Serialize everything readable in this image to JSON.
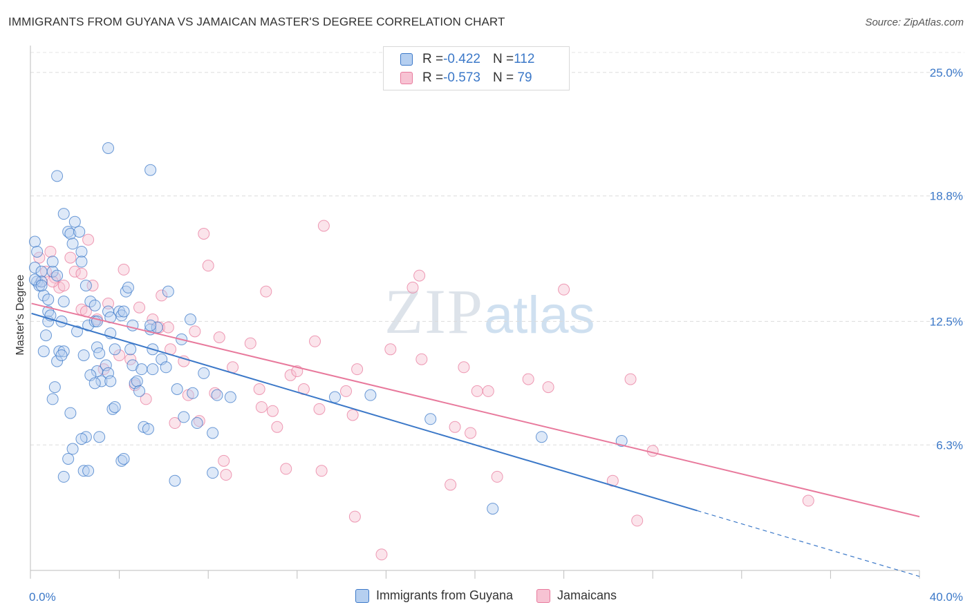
{
  "title": "IMMIGRANTS FROM GUYANA VS JAMAICAN MASTER'S DEGREE CORRELATION CHART",
  "source": "Source: ZipAtlas.com",
  "watermark": {
    "zip": "ZIP",
    "atlas": "atlas"
  },
  "legend_top": {
    "rows": [
      {
        "r_label": "R = ",
        "r_value": "-0.422",
        "n_label": "N = ",
        "n_value": "112"
      },
      {
        "r_label": "R = ",
        "r_value": "-0.573",
        "n_label": "N = ",
        "n_value": " 79"
      }
    ]
  },
  "legend_bottom": [
    "Immigrants from Guyana",
    "Jamaicans"
  ],
  "chart_data": {
    "type": "scatter",
    "title": "IMMIGRANTS FROM GUYANA VS JAMAICAN MASTER'S DEGREE CORRELATION CHART",
    "xlabel": "",
    "ylabel": "Master's Degree",
    "xlim": [
      0,
      40
    ],
    "ylim": [
      0,
      26
    ],
    "x_tick_labels": [
      "0.0%",
      "40.0%"
    ],
    "y_ticks": [
      6.3,
      12.5,
      18.8,
      25.0
    ],
    "y_tick_labels": [
      "6.3%",
      "12.5%",
      "18.8%",
      "25.0%"
    ],
    "grid": true,
    "legend": "top-center",
    "series": [
      {
        "name": "Immigrants from Guyana",
        "color": "#3b78c8",
        "fill": "#b5cff0",
        "r": -0.422,
        "n": 112,
        "trend": {
          "x0": 0.05,
          "y0": 12.9,
          "x1": 30.0,
          "y1": 3.0,
          "dash_to": [
            40.0,
            -0.3
          ]
        },
        "points": [
          [
            0.2,
            16.5
          ],
          [
            0.3,
            16.0
          ],
          [
            0.2,
            15.2
          ],
          [
            0.3,
            14.5
          ],
          [
            0.4,
            14.3
          ],
          [
            0.5,
            15.0
          ],
          [
            0.5,
            14.5
          ],
          [
            0.6,
            13.8
          ],
          [
            0.8,
            13.0
          ],
          [
            0.8,
            12.5
          ],
          [
            0.7,
            11.8
          ],
          [
            0.6,
            11.0
          ],
          [
            0.9,
            12.8
          ],
          [
            1.0,
            15.0
          ],
          [
            1.0,
            15.5
          ],
          [
            1.2,
            14.8
          ],
          [
            1.3,
            11.0
          ],
          [
            1.2,
            10.5
          ],
          [
            1.5,
            11.0
          ],
          [
            1.4,
            10.8
          ],
          [
            1.5,
            13.5
          ],
          [
            1.5,
            17.9
          ],
          [
            1.7,
            17.0
          ],
          [
            1.8,
            16.9
          ],
          [
            1.9,
            16.4
          ],
          [
            2.0,
            17.5
          ],
          [
            2.2,
            17.0
          ],
          [
            2.3,
            16.0
          ],
          [
            2.3,
            15.5
          ],
          [
            2.5,
            14.3
          ],
          [
            2.7,
            13.5
          ],
          [
            2.6,
            12.3
          ],
          [
            2.9,
            13.3
          ],
          [
            2.9,
            12.5
          ],
          [
            3.0,
            11.2
          ],
          [
            3.1,
            10.9
          ],
          [
            3.0,
            10.0
          ],
          [
            3.2,
            9.5
          ],
          [
            3.4,
            10.3
          ],
          [
            3.5,
            13.0
          ],
          [
            3.6,
            12.7
          ],
          [
            3.6,
            11.9
          ],
          [
            3.8,
            11.1
          ],
          [
            3.5,
            9.9
          ],
          [
            3.6,
            9.5
          ],
          [
            3.7,
            8.1
          ],
          [
            3.8,
            8.2
          ],
          [
            4.0,
            13.0
          ],
          [
            4.1,
            12.8
          ],
          [
            4.3,
            14.0
          ],
          [
            4.4,
            14.2
          ],
          [
            4.5,
            11.1
          ],
          [
            4.6,
            10.3
          ],
          [
            4.7,
            9.4
          ],
          [
            4.8,
            9.5
          ],
          [
            4.9,
            9.0
          ],
          [
            5.0,
            10.1
          ],
          [
            5.1,
            7.2
          ],
          [
            5.3,
            7.1
          ],
          [
            5.4,
            12.1
          ],
          [
            5.5,
            11.1
          ],
          [
            5.5,
            10.1
          ],
          [
            5.7,
            12.2
          ],
          [
            5.9,
            10.6
          ],
          [
            6.2,
            14.0
          ],
          [
            6.6,
            9.1
          ],
          [
            6.8,
            11.6
          ],
          [
            6.9,
            7.7
          ],
          [
            7.2,
            12.6
          ],
          [
            7.3,
            8.9
          ],
          [
            7.5,
            7.4
          ],
          [
            7.8,
            9.9
          ],
          [
            8.2,
            6.9
          ],
          [
            8.4,
            8.8
          ],
          [
            9.0,
            8.7
          ],
          [
            3.5,
            21.2
          ],
          [
            5.4,
            20.1
          ],
          [
            1.2,
            19.8
          ],
          [
            0.2,
            14.6
          ],
          [
            0.5,
            14.3
          ],
          [
            0.8,
            13.6
          ],
          [
            1.4,
            12.5
          ],
          [
            2.1,
            12.0
          ],
          [
            2.4,
            10.8
          ],
          [
            2.7,
            9.8
          ],
          [
            2.9,
            9.4
          ],
          [
            2.5,
            6.7
          ],
          [
            2.3,
            6.6
          ],
          [
            1.9,
            6.1
          ],
          [
            1.7,
            5.6
          ],
          [
            1.5,
            4.7
          ],
          [
            2.4,
            5.0
          ],
          [
            2.6,
            5.0
          ],
          [
            3.1,
            6.7
          ],
          [
            4.1,
            5.5
          ],
          [
            4.2,
            5.6
          ],
          [
            6.5,
            4.5
          ],
          [
            8.2,
            4.9
          ],
          [
            13.7,
            8.7
          ],
          [
            15.3,
            8.8
          ],
          [
            18.0,
            7.6
          ],
          [
            23.0,
            6.7
          ],
          [
            26.6,
            6.5
          ],
          [
            20.8,
            3.1
          ],
          [
            4.6,
            12.3
          ],
          [
            4.2,
            13.0
          ],
          [
            1.1,
            9.2
          ],
          [
            1.0,
            8.6
          ],
          [
            1.8,
            7.9
          ],
          [
            5.4,
            12.3
          ],
          [
            6.1,
            10.2
          ],
          [
            3.0,
            12.5
          ]
        ]
      },
      {
        "name": "Jamaicans",
        "color": "#e8799c",
        "fill": "#f7c3d3",
        "r": -0.573,
        "n": 79,
        "trend": {
          "x0": 0.05,
          "y0": 13.4,
          "x1": 40.0,
          "y1": 2.7
        },
        "points": [
          [
            0.4,
            15.7
          ],
          [
            0.7,
            15.0
          ],
          [
            0.9,
            16.0
          ],
          [
            1.1,
            14.7
          ],
          [
            1.3,
            14.2
          ],
          [
            1.5,
            14.3
          ],
          [
            1.8,
            15.7
          ],
          [
            2.0,
            15.0
          ],
          [
            2.3,
            13.1
          ],
          [
            2.5,
            13.0
          ],
          [
            2.6,
            16.6
          ],
          [
            2.8,
            14.3
          ],
          [
            3.0,
            12.6
          ],
          [
            3.3,
            10.1
          ],
          [
            3.5,
            13.4
          ],
          [
            4.0,
            10.8
          ],
          [
            4.2,
            15.1
          ],
          [
            4.5,
            10.6
          ],
          [
            4.7,
            9.3
          ],
          [
            4.9,
            13.2
          ],
          [
            5.2,
            8.6
          ],
          [
            5.5,
            12.6
          ],
          [
            5.8,
            12.2
          ],
          [
            5.9,
            13.8
          ],
          [
            6.2,
            12.2
          ],
          [
            6.3,
            11.1
          ],
          [
            6.5,
            7.4
          ],
          [
            6.9,
            10.5
          ],
          [
            7.1,
            8.8
          ],
          [
            7.4,
            12.0
          ],
          [
            7.6,
            7.5
          ],
          [
            7.8,
            16.9
          ],
          [
            8.0,
            15.3
          ],
          [
            8.3,
            8.9
          ],
          [
            8.5,
            11.7
          ],
          [
            8.7,
            5.5
          ],
          [
            8.8,
            4.8
          ],
          [
            9.1,
            10.2
          ],
          [
            9.9,
            11.4
          ],
          [
            10.3,
            9.1
          ],
          [
            10.4,
            8.2
          ],
          [
            10.6,
            14.0
          ],
          [
            10.9,
            8.0
          ],
          [
            11.1,
            7.2
          ],
          [
            11.5,
            5.1
          ],
          [
            11.7,
            9.8
          ],
          [
            12.0,
            10.0
          ],
          [
            12.3,
            9.1
          ],
          [
            12.8,
            11.5
          ],
          [
            13.0,
            8.1
          ],
          [
            13.1,
            5.0
          ],
          [
            13.2,
            17.3
          ],
          [
            14.2,
            9.0
          ],
          [
            14.5,
            7.8
          ],
          [
            14.6,
            2.7
          ],
          [
            14.7,
            10.1
          ],
          [
            15.8,
            0.8
          ],
          [
            16.2,
            11.1
          ],
          [
            17.2,
            14.2
          ],
          [
            17.5,
            14.8
          ],
          [
            17.6,
            10.6
          ],
          [
            18.9,
            4.3
          ],
          [
            19.1,
            7.2
          ],
          [
            19.5,
            10.2
          ],
          [
            19.8,
            6.9
          ],
          [
            20.1,
            9.0
          ],
          [
            20.6,
            9.0
          ],
          [
            21.0,
            4.7
          ],
          [
            22.4,
            9.6
          ],
          [
            23.3,
            9.2
          ],
          [
            24.0,
            14.1
          ],
          [
            26.2,
            4.5
          ],
          [
            27.0,
            9.6
          ],
          [
            27.3,
            2.5
          ],
          [
            28.0,
            6.0
          ],
          [
            35.0,
            3.5
          ],
          [
            2.3,
            14.9
          ],
          [
            0.5,
            14.5
          ],
          [
            1.0,
            14.5
          ]
        ]
      }
    ]
  }
}
